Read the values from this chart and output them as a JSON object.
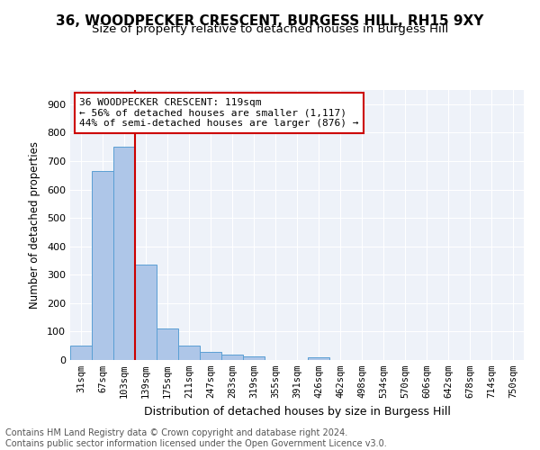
{
  "title": "36, WOODPECKER CRESCENT, BURGESS HILL, RH15 9XY",
  "subtitle": "Size of property relative to detached houses in Burgess Hill",
  "xlabel": "Distribution of detached houses by size in Burgess Hill",
  "ylabel": "Number of detached properties",
  "bin_labels": [
    "31sqm",
    "67sqm",
    "103sqm",
    "139sqm",
    "175sqm",
    "211sqm",
    "247sqm",
    "283sqm",
    "319sqm",
    "355sqm",
    "391sqm",
    "426sqm",
    "462sqm",
    "498sqm",
    "534sqm",
    "570sqm",
    "606sqm",
    "642sqm",
    "678sqm",
    "714sqm",
    "750sqm"
  ],
  "bar_values": [
    50,
    665,
    750,
    335,
    110,
    52,
    27,
    18,
    13,
    0,
    0,
    8,
    0,
    0,
    0,
    0,
    0,
    0,
    0,
    0,
    0
  ],
  "bar_color": "#aec6e8",
  "bar_edge_color": "#5a9fd4",
  "vline_x": 2.5,
  "vline_color": "#cc0000",
  "annotation_text": "36 WOODPECKER CRESCENT: 119sqm\n← 56% of detached houses are smaller (1,117)\n44% of semi-detached houses are larger (876) →",
  "annotation_box_color": "#ffffff",
  "annotation_box_edge": "#cc0000",
  "ylim": [
    0,
    950
  ],
  "yticks": [
    0,
    100,
    200,
    300,
    400,
    500,
    600,
    700,
    800,
    900
  ],
  "footer_text": "Contains HM Land Registry data © Crown copyright and database right 2024.\nContains public sector information licensed under the Open Government Licence v3.0.",
  "bg_color": "#eef2f9",
  "grid_color": "#ffffff",
  "title_fontsize": 11,
  "subtitle_fontsize": 9.5,
  "annotation_fontsize": 8.0,
  "footer_fontsize": 7.0
}
